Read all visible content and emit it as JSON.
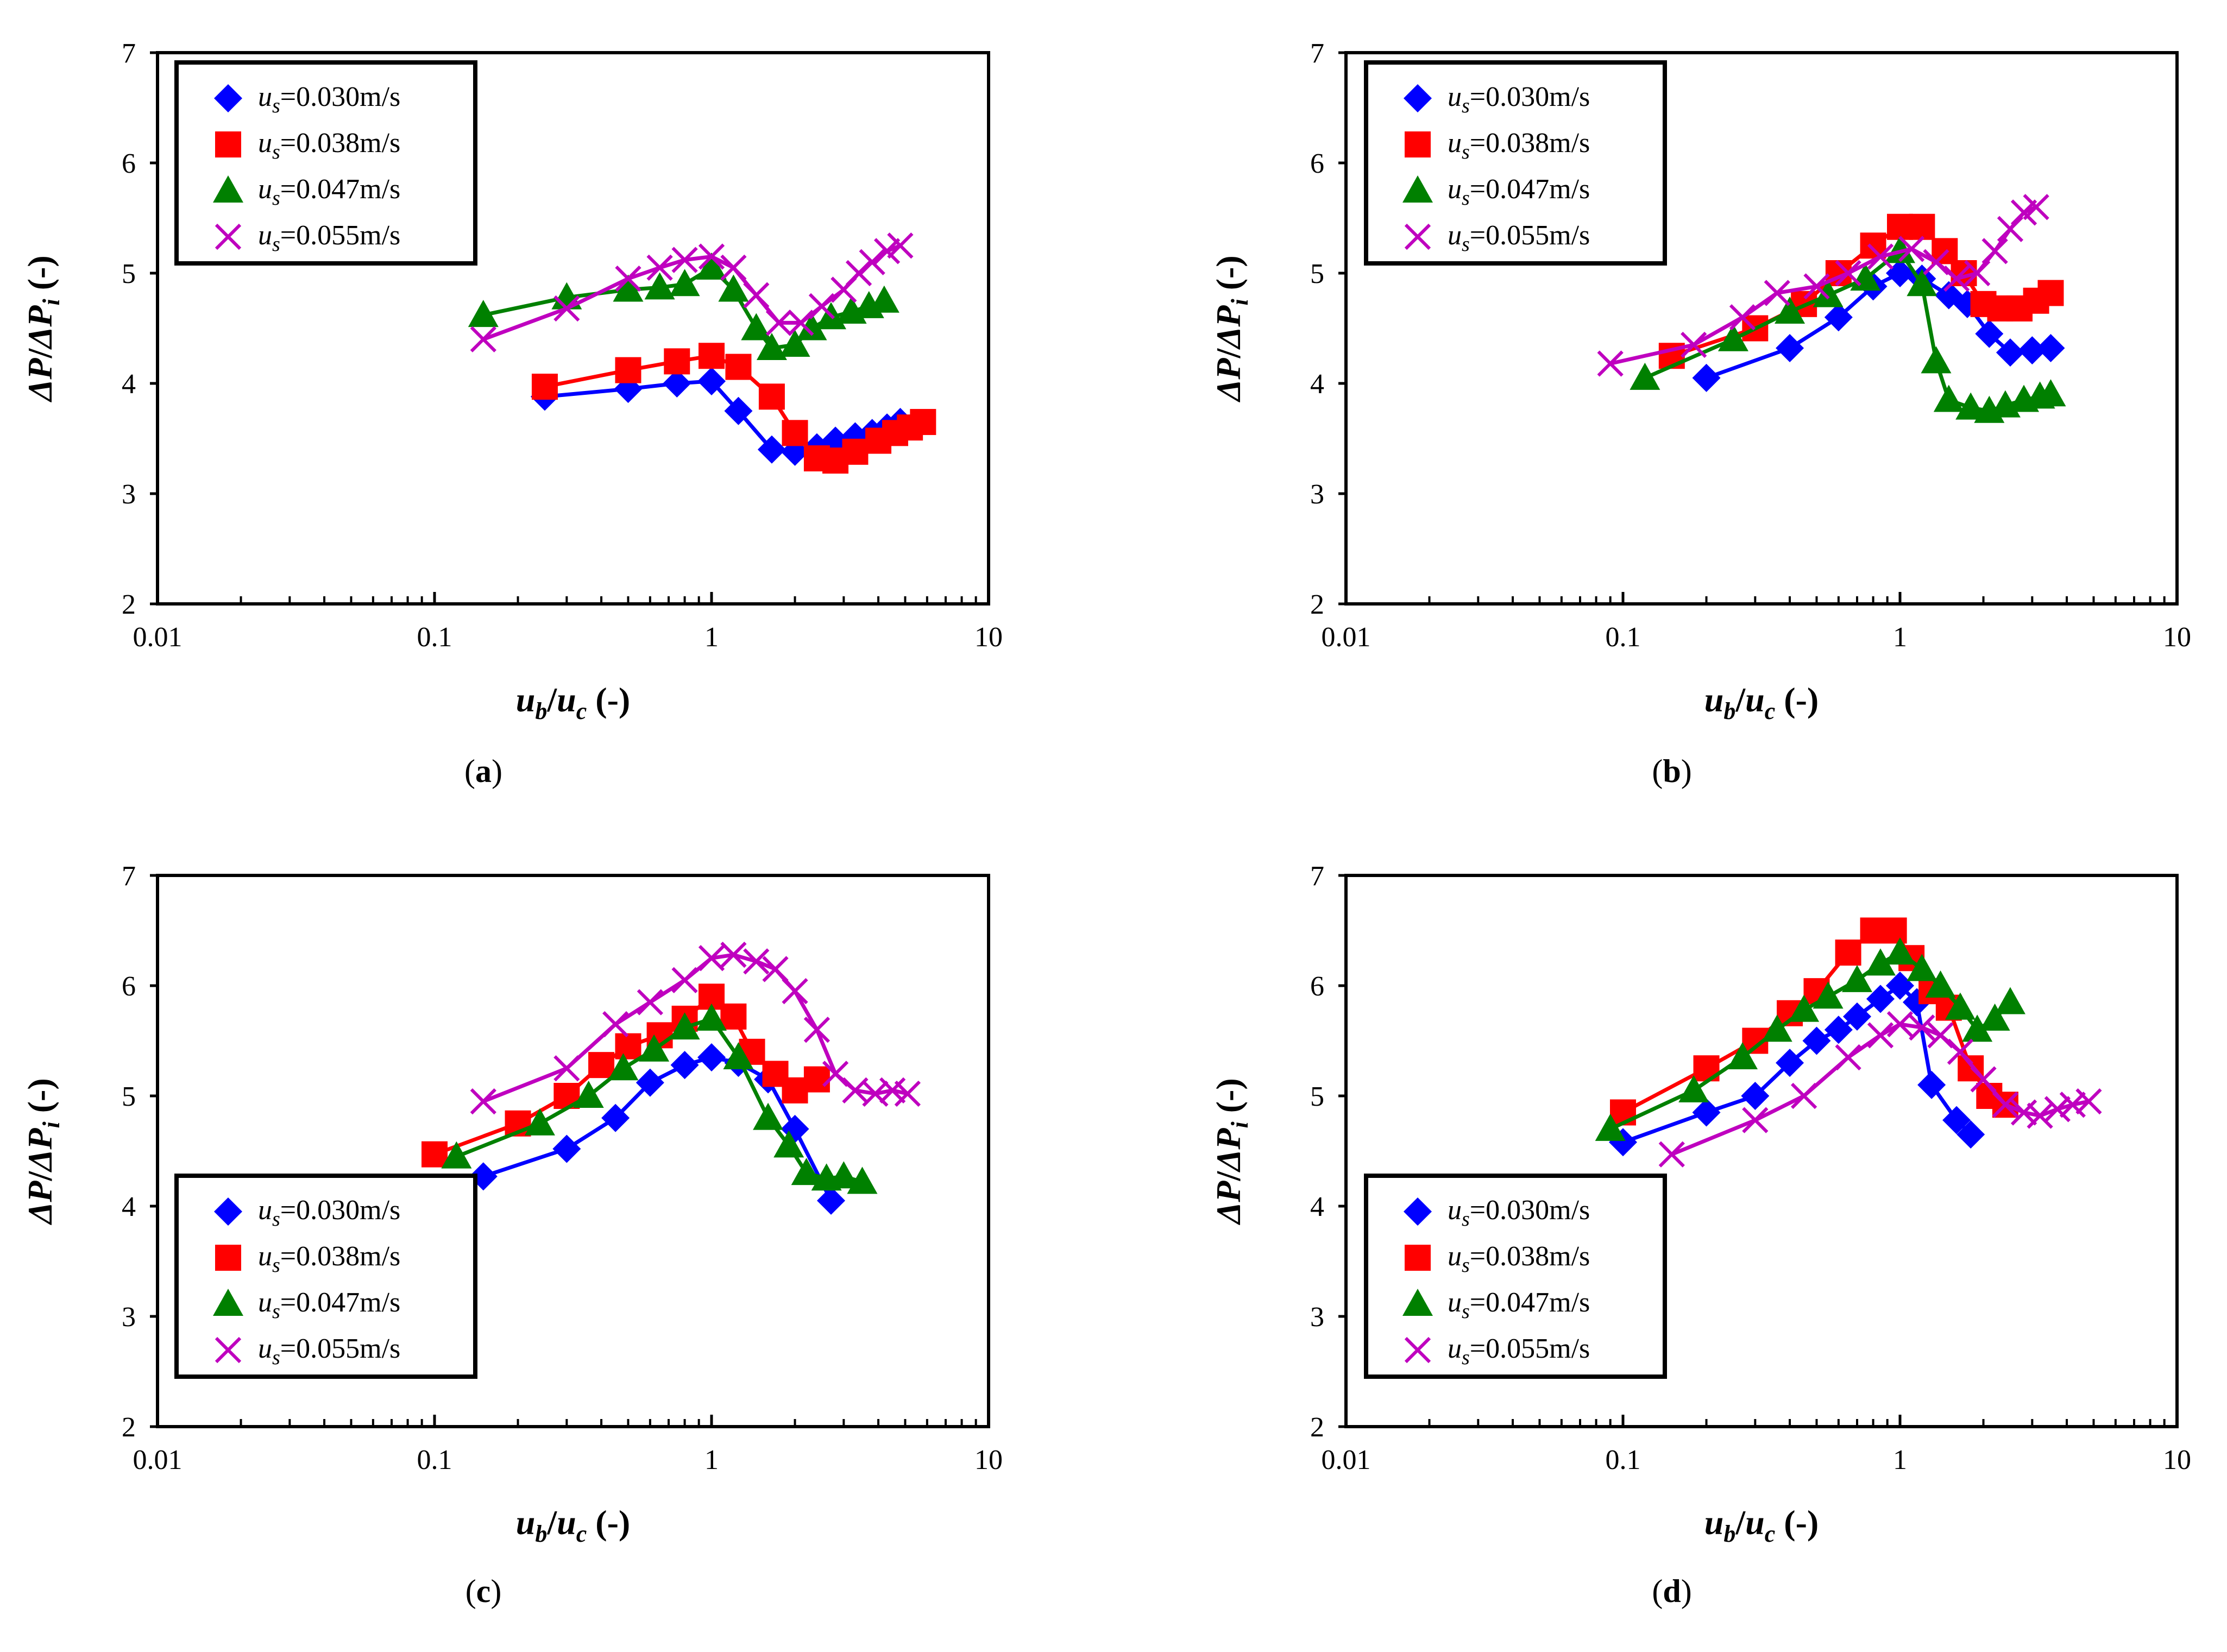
{
  "figure": {
    "panels": [
      "a",
      "b",
      "c",
      "d"
    ]
  },
  "colors": {
    "series1": "#0000FF",
    "series2": "#FF0000",
    "series3": "#008000",
    "series4": "#BF00BF",
    "axis": "#000000"
  },
  "chart_data": [
    {
      "panel": "a",
      "panel_label_open": "(",
      "panel_label_letter": "a",
      "panel_label_close": ")",
      "type": "line",
      "xscale": "log",
      "xlim": [
        0.01,
        10
      ],
      "ylim": [
        2,
        7
      ],
      "xticks": [
        "0.01",
        "0.1",
        "1",
        "10"
      ],
      "yticks": [
        "2",
        "3",
        "4",
        "5",
        "6",
        "7"
      ],
      "xlabel": {
        "a": "u",
        "a_sub": "b",
        "slash": "/",
        "b": "u",
        "b_sub": "c",
        "tail": " (-)"
      },
      "ylabel": {
        "a": "ΔP",
        "slash": "/",
        "b": "ΔP",
        "b_sub": "i",
        "tail": " (-)"
      },
      "legend_position": "top-left",
      "series": [
        {
          "name_main": "u",
          "name_sub": "s",
          "name_value": "=0.030m/s",
          "marker": "diamond",
          "x": [
            0.25,
            0.5,
            0.75,
            1.0,
            1.25,
            1.65,
            2.0,
            2.4,
            2.8,
            3.3,
            3.8,
            4.3,
            4.8
          ],
          "y": [
            3.88,
            3.95,
            4.0,
            4.02,
            3.75,
            3.4,
            3.38,
            3.42,
            3.48,
            3.52,
            3.55,
            3.6,
            3.65
          ]
        },
        {
          "name_main": "u",
          "name_sub": "s",
          "name_value": "=0.038m/s",
          "marker": "square",
          "x": [
            0.25,
            0.5,
            0.75,
            1.0,
            1.25,
            1.65,
            2.0,
            2.4,
            2.8,
            3.3,
            4.0,
            4.6,
            5.2,
            5.8
          ],
          "y": [
            3.97,
            4.12,
            4.2,
            4.25,
            4.15,
            3.88,
            3.55,
            3.32,
            3.3,
            3.38,
            3.48,
            3.55,
            3.6,
            3.65
          ]
        },
        {
          "name_main": "u",
          "name_sub": "s",
          "name_value": "=0.047m/s",
          "marker": "triangle",
          "x": [
            0.15,
            0.3,
            0.5,
            0.65,
            0.8,
            1.0,
            1.2,
            1.45,
            1.65,
            2.0,
            2.3,
            2.7,
            3.2,
            3.7,
            4.2
          ],
          "y": [
            4.62,
            4.78,
            4.85,
            4.87,
            4.9,
            5.05,
            4.85,
            4.5,
            4.32,
            4.35,
            4.5,
            4.6,
            4.65,
            4.7,
            4.75
          ]
        },
        {
          "name_main": "u",
          "name_sub": "s",
          "name_value": "=0.055m/s",
          "marker": "cross",
          "x": [
            0.15,
            0.3,
            0.5,
            0.65,
            0.8,
            1.0,
            1.2,
            1.45,
            1.75,
            2.1,
            2.5,
            3.0,
            3.4,
            3.8,
            4.3,
            4.8
          ],
          "y": [
            4.4,
            4.68,
            4.95,
            5.05,
            5.12,
            5.15,
            5.05,
            4.8,
            4.55,
            4.55,
            4.7,
            4.85,
            5.0,
            5.1,
            5.2,
            5.25
          ]
        }
      ]
    },
    {
      "panel": "b",
      "panel_label_open": "(",
      "panel_label_letter": "b",
      "panel_label_close": ")",
      "type": "line",
      "xscale": "log",
      "xlim": [
        0.01,
        10
      ],
      "ylim": [
        2,
        7
      ],
      "xticks": [
        "0.01",
        "0.1",
        "1",
        "10"
      ],
      "yticks": [
        "2",
        "3",
        "4",
        "5",
        "6",
        "7"
      ],
      "xlabel": {
        "a": "u",
        "a_sub": "b",
        "slash": "/",
        "b": "u",
        "b_sub": "c",
        "tail": " (-)"
      },
      "ylabel": {
        "a": "ΔP",
        "slash": "/",
        "b": "ΔP",
        "b_sub": "i",
        "tail": " (-)"
      },
      "legend_position": "top-left",
      "series": [
        {
          "name_main": "u",
          "name_sub": "s",
          "name_value": "=0.030m/s",
          "marker": "diamond",
          "x": [
            0.2,
            0.4,
            0.6,
            0.8,
            1.0,
            1.2,
            1.5,
            1.75,
            2.1,
            2.5,
            3.0,
            3.5
          ],
          "y": [
            4.05,
            4.32,
            4.6,
            4.88,
            5.0,
            4.95,
            4.8,
            4.72,
            4.45,
            4.28,
            4.3,
            4.32
          ]
        },
        {
          "name_main": "u",
          "name_sub": "s",
          "name_value": "=0.038m/s",
          "marker": "square",
          "x": [
            0.15,
            0.3,
            0.45,
            0.6,
            0.8,
            1.0,
            1.2,
            1.45,
            1.7,
            2.0,
            2.3,
            2.7,
            3.1,
            3.5
          ],
          "y": [
            4.25,
            4.5,
            4.72,
            5.0,
            5.25,
            5.42,
            5.42,
            5.2,
            5.0,
            4.72,
            4.68,
            4.68,
            4.75,
            4.82
          ]
        },
        {
          "name_main": "u",
          "name_sub": "s",
          "name_value": "=0.047m/s",
          "marker": "triangle",
          "x": [
            0.12,
            0.25,
            0.4,
            0.55,
            0.75,
            1.0,
            1.2,
            1.35,
            1.5,
            1.8,
            2.1,
            2.4,
            2.8,
            3.2,
            3.5
          ],
          "y": [
            4.05,
            4.4,
            4.65,
            4.8,
            4.95,
            5.2,
            4.9,
            4.2,
            3.85,
            3.78,
            3.75,
            3.8,
            3.85,
            3.88,
            3.9
          ]
        },
        {
          "name_main": "u",
          "name_sub": "s",
          "name_value": "=0.055m/s",
          "marker": "cross",
          "x": [
            0.09,
            0.18,
            0.27,
            0.36,
            0.5,
            0.65,
            0.85,
            1.1,
            1.35,
            1.6,
            1.9,
            2.2,
            2.5,
            2.8,
            3.1
          ],
          "y": [
            4.18,
            4.35,
            4.6,
            4.82,
            4.88,
            5.0,
            5.15,
            5.22,
            5.1,
            4.95,
            5.0,
            5.2,
            5.4,
            5.55,
            5.6
          ]
        }
      ]
    },
    {
      "panel": "c",
      "panel_label_open": "(",
      "panel_label_letter": "c",
      "panel_label_close": ")",
      "type": "line",
      "xscale": "log",
      "xlim": [
        0.01,
        10
      ],
      "ylim": [
        2,
        7
      ],
      "xticks": [
        "0.01",
        "0.1",
        "1",
        "10"
      ],
      "yticks": [
        "2",
        "3",
        "4",
        "5",
        "6",
        "7"
      ],
      "xlabel": {
        "a": "u",
        "a_sub": "b",
        "slash": "/",
        "b": "u",
        "b_sub": "c",
        "tail": " (-)"
      },
      "ylabel": {
        "a": "ΔP",
        "slash": "/",
        "b": "ΔP",
        "b_sub": "i",
        "tail": " (-)"
      },
      "legend_position": "bottom-left",
      "series": [
        {
          "name_main": "u",
          "name_sub": "s",
          "name_value": "=0.030m/s",
          "marker": "diamond",
          "x": [
            0.15,
            0.3,
            0.45,
            0.6,
            0.8,
            1.0,
            1.25,
            1.6,
            2.0,
            2.7
          ],
          "y": [
            4.27,
            4.52,
            4.8,
            5.12,
            5.28,
            5.35,
            5.3,
            5.15,
            4.7,
            4.05
          ]
        },
        {
          "name_main": "u",
          "name_sub": "s",
          "name_value": "=0.038m/s",
          "marker": "square",
          "x": [
            0.1,
            0.2,
            0.3,
            0.4,
            0.5,
            0.65,
            0.8,
            1.0,
            1.2,
            1.4,
            1.7,
            2.0,
            2.4
          ],
          "y": [
            4.47,
            4.75,
            5.0,
            5.28,
            5.45,
            5.55,
            5.7,
            5.9,
            5.72,
            5.4,
            5.2,
            5.05,
            5.15
          ]
        },
        {
          "name_main": "u",
          "name_sub": "s",
          "name_value": "=0.047m/s",
          "marker": "triangle",
          "x": [
            0.12,
            0.24,
            0.36,
            0.48,
            0.62,
            0.8,
            1.0,
            1.25,
            1.6,
            1.9,
            2.2,
            2.6,
            3.0,
            3.5
          ],
          "y": [
            4.45,
            4.75,
            5.0,
            5.25,
            5.42,
            5.62,
            5.7,
            5.35,
            4.8,
            4.55,
            4.3,
            4.25,
            4.27,
            4.22
          ]
        },
        {
          "name_main": "u",
          "name_sub": "s",
          "name_value": "=0.055m/s",
          "marker": "cross",
          "x": [
            0.15,
            0.3,
            0.45,
            0.6,
            0.8,
            1.0,
            1.2,
            1.45,
            1.7,
            2.0,
            2.4,
            2.8,
            3.3,
            3.9,
            4.5,
            5.1
          ],
          "y": [
            4.95,
            5.25,
            5.65,
            5.85,
            6.05,
            6.25,
            6.28,
            6.22,
            6.15,
            5.95,
            5.6,
            5.2,
            5.05,
            5.02,
            5.05,
            5.02
          ]
        }
      ]
    },
    {
      "panel": "d",
      "panel_label_open": "(",
      "panel_label_letter": "d",
      "panel_label_close": ")",
      "type": "line",
      "xscale": "log",
      "xlim": [
        0.01,
        10
      ],
      "ylim": [
        2,
        7
      ],
      "xticks": [
        "0.01",
        "0.1",
        "1",
        "10"
      ],
      "yticks": [
        "2",
        "3",
        "4",
        "5",
        "6",
        "7"
      ],
      "xlabel": {
        "a": "u",
        "a_sub": "b",
        "slash": "/",
        "b": "u",
        "b_sub": "c",
        "tail": " (-)"
      },
      "ylabel": {
        "a": "ΔP",
        "slash": "/",
        "b": "ΔP",
        "b_sub": "i",
        "tail": " (-)"
      },
      "legend_position": "bottom-left",
      "series": [
        {
          "name_main": "u",
          "name_sub": "s",
          "name_value": "=0.030m/s",
          "marker": "diamond",
          "x": [
            0.1,
            0.2,
            0.3,
            0.4,
            0.5,
            0.6,
            0.7,
            0.85,
            1.0,
            1.15,
            1.3,
            1.6,
            1.8
          ],
          "y": [
            4.58,
            4.85,
            5.0,
            5.3,
            5.5,
            5.6,
            5.72,
            5.88,
            6.0,
            5.85,
            5.1,
            4.78,
            4.65
          ]
        },
        {
          "name_main": "u",
          "name_sub": "s",
          "name_value": "=0.038m/s",
          "marker": "square",
          "x": [
            0.1,
            0.2,
            0.3,
            0.4,
            0.5,
            0.65,
            0.8,
            0.95,
            1.1,
            1.3,
            1.5,
            1.8,
            2.1,
            2.4
          ],
          "y": [
            4.85,
            5.25,
            5.5,
            5.75,
            5.95,
            6.3,
            6.5,
            6.5,
            6.25,
            5.95,
            5.8,
            5.25,
            5.0,
            4.92
          ]
        },
        {
          "name_main": "u",
          "name_sub": "s",
          "name_value": "=0.047m/s",
          "marker": "triangle",
          "x": [
            0.09,
            0.18,
            0.27,
            0.36,
            0.45,
            0.55,
            0.7,
            0.85,
            1.0,
            1.2,
            1.4,
            1.65,
            1.9,
            2.2,
            2.5
          ],
          "y": [
            4.7,
            5.05,
            5.35,
            5.6,
            5.78,
            5.9,
            6.05,
            6.2,
            6.3,
            6.15,
            6.0,
            5.8,
            5.6,
            5.7,
            5.85
          ]
        },
        {
          "name_main": "u",
          "name_sub": "s",
          "name_value": "=0.055m/s",
          "marker": "cross",
          "x": [
            0.15,
            0.3,
            0.45,
            0.65,
            0.85,
            1.0,
            1.2,
            1.4,
            1.65,
            2.0,
            2.4,
            2.8,
            3.2,
            3.7,
            4.2,
            4.8
          ],
          "y": [
            4.47,
            4.78,
            5.0,
            5.35,
            5.55,
            5.65,
            5.62,
            5.55,
            5.4,
            5.15,
            4.92,
            4.85,
            4.82,
            4.88,
            4.92,
            4.95
          ]
        }
      ]
    }
  ]
}
